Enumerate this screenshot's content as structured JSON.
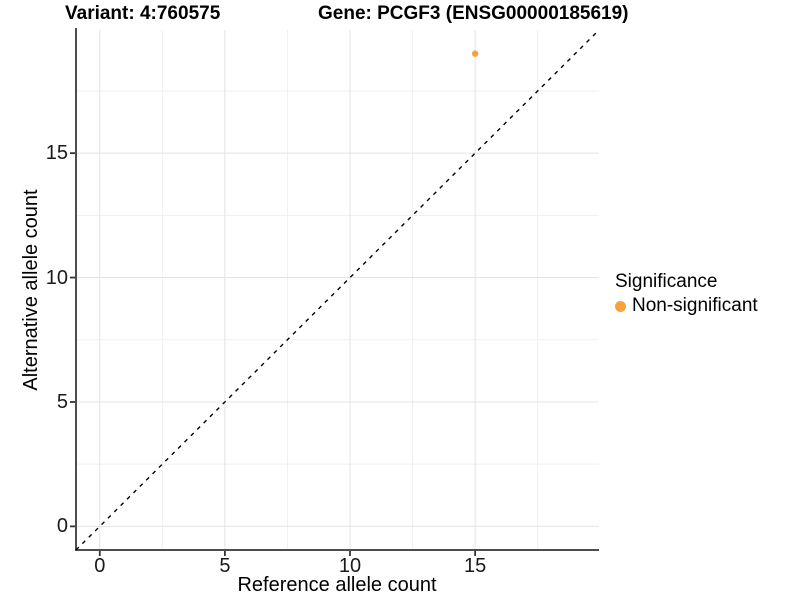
{
  "header": {
    "title_left": "Variant: 4:760575",
    "title_right": "Gene: PCGF3 (ENSG00000185619)"
  },
  "chart_data": {
    "type": "scatter",
    "xlabel": "Reference allele count",
    "ylabel": "Alternative allele count",
    "xlim": [
      -0.95,
      19.95
    ],
    "ylim": [
      -0.95,
      19.95
    ],
    "xticks": [
      0,
      5,
      10,
      15
    ],
    "yticks": [
      0,
      5,
      10,
      15
    ],
    "xminor": [
      2.5,
      7.5,
      12.5,
      17.5
    ],
    "yminor": [
      2.5,
      7.5,
      12.5,
      17.5
    ],
    "grid": true,
    "identity_line": {
      "slope": 1,
      "intercept": 0,
      "style": "dashed",
      "color": "#000000"
    },
    "series": [
      {
        "name": "Non-significant",
        "color": "#F9A13B",
        "points": [
          {
            "x": 15,
            "y": 19
          }
        ]
      }
    ],
    "legend": {
      "title": "Significance",
      "position": "right",
      "items": [
        {
          "label": "Non-significant",
          "color": "#F9A13B"
        }
      ]
    },
    "colors": {
      "grid_major": "#e4e4e4",
      "grid_minor": "#efefef",
      "axis_line": "#4d4d4d",
      "tick_mark": "#333333"
    }
  }
}
